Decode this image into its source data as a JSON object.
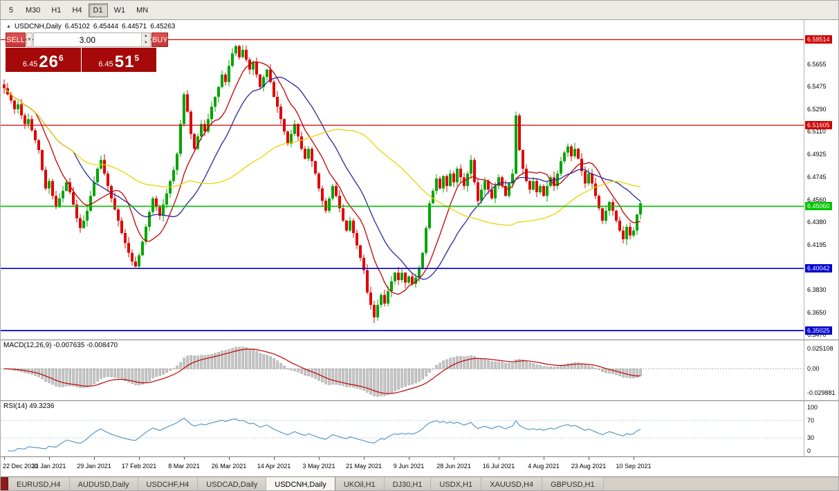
{
  "toolbar": {
    "timeframes": [
      {
        "label": "5",
        "active": false
      },
      {
        "label": "M30",
        "active": false
      },
      {
        "label": "H1",
        "active": false
      },
      {
        "label": "H4",
        "active": false
      },
      {
        "label": "D1",
        "active": true
      },
      {
        "label": "W1",
        "active": false
      },
      {
        "label": "MN",
        "active": false
      }
    ]
  },
  "chart_header": {
    "collapse_icon": "▲",
    "symbol_title": "USDCNH,Daily",
    "open": "6.45102",
    "high": "6.45444",
    "low": "6.44571",
    "close": "6.45263"
  },
  "trade_panel": {
    "sell_label": "SELL",
    "buy_label": "BUY",
    "volume": "3.00",
    "dropdown_icon": "▼",
    "spin_up_icon": "▲",
    "spin_down_icon": "▼",
    "bid_prefix": "6.45",
    "bid_main": "26",
    "bid_sup": "6",
    "ask_prefix": "6.45",
    "ask_main": "51",
    "ask_sup": "5"
  },
  "price_axis": {
    "ticks": [
      "6.5655",
      "6.5475",
      "6.5290",
      "6.5110",
      "6.4925",
      "6.4745",
      "6.4560",
      "6.4380",
      "6.4195",
      "6.4015",
      "6.3830",
      "6.3650",
      "6.3470"
    ]
  },
  "hlines": [
    {
      "price": 6.58514,
      "label": "6.58514",
      "color": "#cf0000",
      "width": 1.3
    },
    {
      "price": 6.51605,
      "label": "6.51605",
      "color": "#cf0000",
      "width": 1.3
    },
    {
      "price": 6.4506,
      "label": "6.45060",
      "color": "#00c400",
      "width": 1.7
    },
    {
      "price": 6.40042,
      "label": "6.40042",
      "color": "#0000cf",
      "width": 1.7
    },
    {
      "price": 6.35025,
      "label": "6.35025",
      "color": "#0000cf",
      "width": 1.7
    }
  ],
  "macd_panel": {
    "label": "MACD(12,26,9) -0.007635 -0.008470",
    "axis": [
      "0.025108",
      "0.00",
      "-0.029881"
    ]
  },
  "rsi_panel": {
    "label": "RSI(14) 49.3236",
    "axis": [
      "100",
      "70",
      "30",
      "0"
    ]
  },
  "bottom_tabs": [
    {
      "label": "EURUSD,H4",
      "active": false
    },
    {
      "label": "AUDUSD,Daily",
      "active": false
    },
    {
      "label": "USDCHF,H4",
      "active": false
    },
    {
      "label": "USDCAD,Daily",
      "active": false
    },
    {
      "label": "USDCNH,Daily",
      "active": true
    },
    {
      "label": "UKOil,H1",
      "active": false
    },
    {
      "label": "DJ30,H1",
      "active": false
    },
    {
      "label": "USDX,H1",
      "active": false
    },
    {
      "label": "XAUUSD,H4",
      "active": false
    },
    {
      "label": "GBPUSD,H1",
      "active": false
    }
  ],
  "chart_data": {
    "type": "candlestick",
    "symbol": "USDCNH",
    "timeframe": "Daily",
    "title": "USDCNH,Daily",
    "price_range": [
      6.343,
      6.601
    ],
    "up_color": "#00a400",
    "down_color": "#e00000",
    "closes": [
      6.546,
      6.541,
      6.536,
      6.529,
      6.533,
      6.524,
      6.517,
      6.521,
      6.512,
      6.504,
      6.496,
      6.48,
      6.465,
      6.471,
      6.459,
      6.45,
      6.457,
      6.463,
      6.47,
      6.462,
      6.452,
      6.441,
      6.433,
      6.439,
      6.447,
      6.459,
      6.47,
      6.481,
      6.488,
      6.477,
      6.467,
      6.457,
      6.448,
      6.439,
      6.429,
      6.421,
      6.413,
      6.406,
      6.402,
      6.411,
      6.422,
      6.434,
      6.446,
      6.457,
      6.45,
      6.443,
      6.452,
      6.461,
      6.471,
      6.48,
      6.493,
      6.517,
      6.541,
      6.527,
      6.509,
      6.497,
      6.507,
      6.517,
      6.511,
      6.521,
      6.531,
      6.539,
      6.547,
      6.557,
      6.551,
      6.564,
      6.574,
      6.58,
      6.571,
      6.577,
      6.569,
      6.561,
      6.567,
      6.557,
      6.547,
      6.555,
      6.561,
      6.551,
      6.539,
      6.531,
      6.521,
      6.511,
      6.501,
      6.509,
      6.517,
      6.507,
      6.497,
      6.489,
      6.497,
      6.487,
      6.477,
      6.465,
      6.455,
      6.447,
      6.457,
      6.467,
      6.459,
      6.449,
      6.439,
      6.431,
      6.439,
      6.429,
      6.419,
      6.409,
      6.399,
      6.381,
      6.371,
      6.361,
      6.371,
      6.379,
      6.372,
      6.382,
      6.39,
      6.397,
      6.391,
      6.397,
      6.389,
      6.394,
      6.388,
      6.393,
      6.401,
      6.413,
      6.433,
      6.453,
      6.463,
      6.473,
      6.465,
      6.475,
      6.467,
      6.477,
      6.47,
      6.481,
      6.474,
      6.467,
      6.477,
      6.488,
      6.47,
      6.455,
      6.464,
      6.471,
      6.464,
      6.457,
      6.467,
      6.474,
      6.467,
      6.459,
      6.469,
      6.477,
      6.524,
      6.496,
      6.481,
      6.471,
      6.464,
      6.471,
      6.462,
      6.467,
      6.459,
      6.467,
      6.474,
      6.467,
      6.477,
      6.487,
      6.494,
      6.499,
      6.491,
      6.497,
      6.489,
      6.479,
      6.469,
      6.477,
      6.469,
      6.459,
      6.449,
      6.439,
      6.447,
      6.454,
      6.447,
      6.439,
      6.431,
      6.424,
      6.434,
      6.427,
      6.431,
      6.444,
      6.453
    ],
    "x_labels": [
      "22 Dec 2020",
      "11 Jan 2021",
      "29 Jan 2021",
      "17 Feb 2021",
      "8 Mar 2021",
      "26 Mar 2021",
      "14 Apr 2021",
      "3 May 2021",
      "21 May 2021",
      "9 Jun 2021",
      "28 Jun 2021",
      "16 Jul 2021",
      "4 Aug 2021",
      "23 Aug 2021",
      "10 Sep 2021"
    ],
    "x_label_bars": [
      0,
      13,
      26,
      39,
      52,
      65,
      78,
      91,
      104,
      117,
      130,
      143,
      156,
      169,
      182
    ],
    "overlays": [
      {
        "name": "ma-fast",
        "period": 10,
        "color": "#c00000"
      },
      {
        "name": "ma-mid",
        "period": 21,
        "color": "#26269a"
      },
      {
        "name": "ma-slow",
        "period": 55,
        "color": "#efd100"
      }
    ],
    "macd": {
      "fast": 12,
      "slow": 26,
      "signal": 9,
      "main": -0.007635,
      "signal_value": -0.00847,
      "scale_max": 0.025108,
      "scale_min": -0.029881,
      "histogram_color": "#c6c6c6",
      "signal_color": "#c00000"
    },
    "rsi": {
      "period": 14,
      "value": 49.3236,
      "levels": [
        70,
        30
      ],
      "line_color": "#4a90c2"
    }
  }
}
